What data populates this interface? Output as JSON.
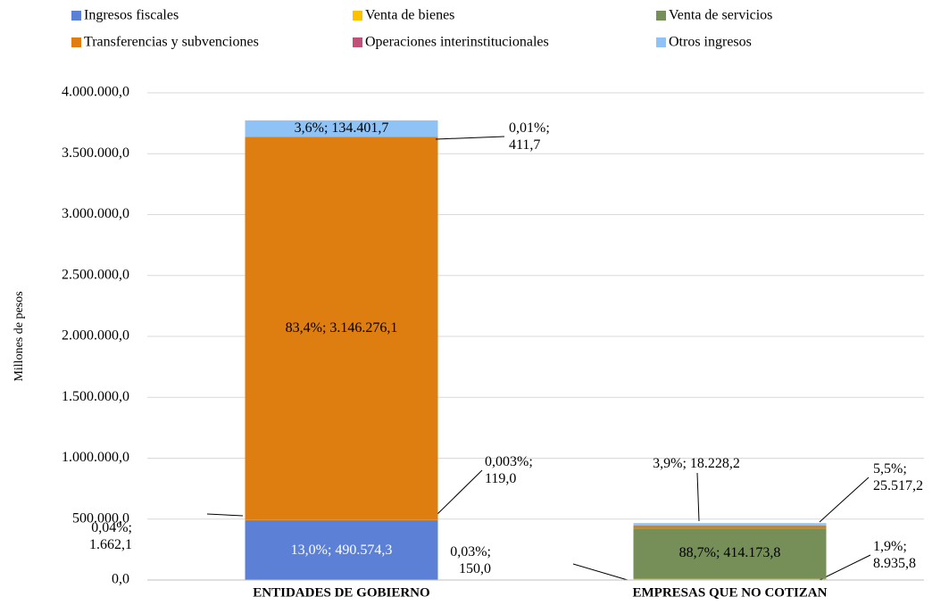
{
  "chart_data": {
    "type": "bar",
    "stacked": true,
    "categories": [
      "ENTIDADES DE GOBIERNO",
      "EMPRESAS QUE NO COTIZAN"
    ],
    "ylabel": "Millones  de pesos",
    "series": [
      {
        "name": "Ingresos fiscales",
        "color": "#5b80d6",
        "values": [
          490574.3,
          150.0
        ],
        "value_labels": [
          "13,0%; 490.574,3",
          "0,03%; 150,0"
        ]
      },
      {
        "name": "Venta de bienes",
        "color": "#ffc000",
        "values": [
          1662.1,
          8935.8
        ],
        "value_labels": [
          "0,04%; 1.662,1",
          "1,9%; 8.935,8"
        ]
      },
      {
        "name": "Venta de servicios",
        "color": "#768f58",
        "values": [
          119.0,
          414173.8
        ],
        "value_labels": [
          "0,003%; 119,0",
          "88,7%; 414.173,8"
        ]
      },
      {
        "name": "Transferencias y subvenciones",
        "color": "#df7e10",
        "values": [
          3146276.1,
          25517.2
        ],
        "value_labels": [
          "83,4%; 3.146.276,1",
          "5,5%; 25.517,2"
        ]
      },
      {
        "name": "Operaciones interinstitucionales",
        "color": "#c0507a",
        "values": [
          411.7,
          null
        ],
        "value_labels": [
          "0,01%; 411,7",
          null
        ]
      },
      {
        "name": "Otros ingresos",
        "color": "#8fc3f5",
        "values": [
          134401.7,
          18228.2
        ],
        "value_labels": [
          "3,6%; 134.401,7",
          "3,9%; 18.228,2"
        ]
      }
    ],
    "ylim": [
      0,
      4000000
    ],
    "yticks": [
      {
        "value": 0,
        "label": "0,0"
      },
      {
        "value": 500000,
        "label": "500.000,0"
      },
      {
        "value": 1000000,
        "label": "1.000.000,0"
      },
      {
        "value": 1500000,
        "label": "1.500.000,0"
      },
      {
        "value": 2000000,
        "label": "2.000.000,0"
      },
      {
        "value": 2500000,
        "label": "2.500.000,0"
      },
      {
        "value": 3000000,
        "label": "3.000.000,0"
      },
      {
        "value": 3500000,
        "label": "3.500.000,0"
      },
      {
        "value": 4000000,
        "label": "4.000.000,0"
      }
    ],
    "grid": true,
    "legend": "top"
  }
}
